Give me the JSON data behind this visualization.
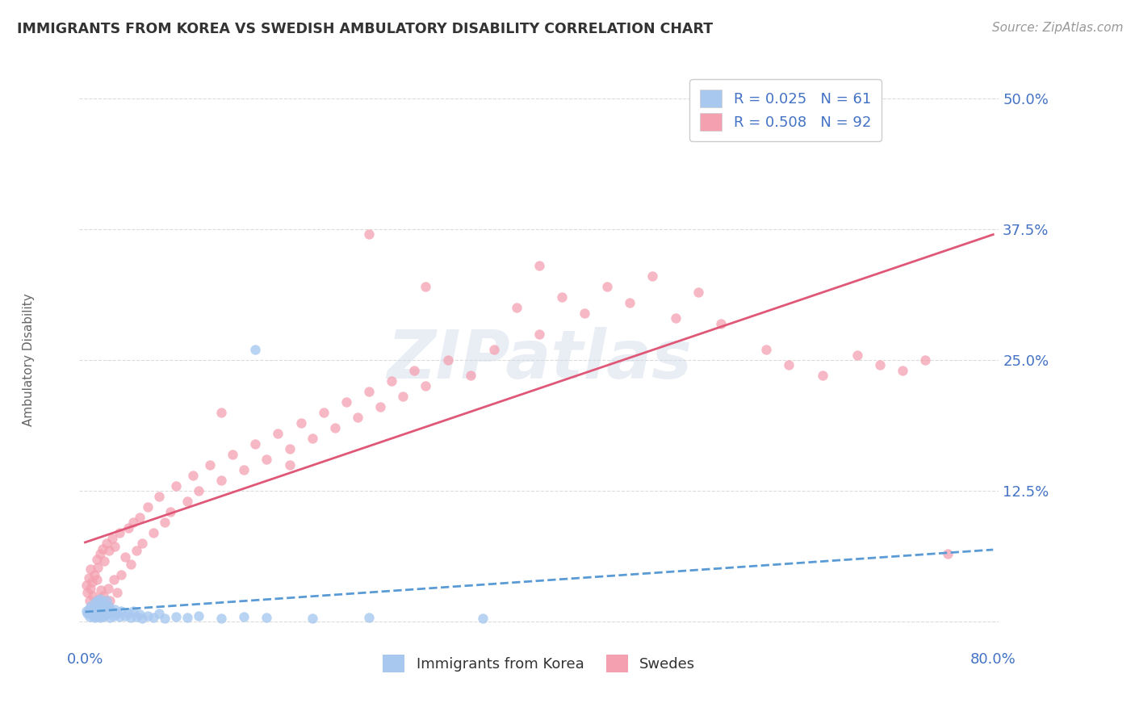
{
  "title": "IMMIGRANTS FROM KOREA VS SWEDISH AMBULATORY DISABILITY CORRELATION CHART",
  "source": "Source: ZipAtlas.com",
  "ylabel": "Ambulatory Disability",
  "legend_korea": "Immigrants from Korea",
  "legend_swedes": "Swedes",
  "r_korea": 0.025,
  "n_korea": 61,
  "r_swedes": 0.508,
  "n_swedes": 92,
  "korea_color": "#a8c8f0",
  "swedes_color": "#f4a0b0",
  "korea_line_color": "#5b9bd5",
  "swedes_line_color": "#e05878",
  "background_color": "#ffffff",
  "grid_color": "#cccccc",
  "title_color": "#333333",
  "axis_label_color": "#4472c4",
  "watermark_text": "ZIPatlas",
  "xmin": 0.0,
  "xmax": 0.8,
  "ymin": -0.025,
  "ymax": 0.525,
  "yticks": [
    0.0,
    0.125,
    0.25,
    0.375,
    0.5
  ],
  "ytick_labels": [
    "",
    "12.5%",
    "25.0%",
    "37.5%",
    "50.0%"
  ],
  "korea_scatter_x": [
    0.001,
    0.002,
    0.003,
    0.004,
    0.005,
    0.005,
    0.006,
    0.007,
    0.007,
    0.008,
    0.008,
    0.009,
    0.009,
    0.01,
    0.01,
    0.011,
    0.011,
    0.012,
    0.012,
    0.013,
    0.013,
    0.014,
    0.014,
    0.015,
    0.015,
    0.016,
    0.016,
    0.017,
    0.018,
    0.018,
    0.019,
    0.02,
    0.021,
    0.022,
    0.023,
    0.025,
    0.026,
    0.028,
    0.03,
    0.032,
    0.035,
    0.038,
    0.04,
    0.042,
    0.045,
    0.048,
    0.05,
    0.055,
    0.06,
    0.065,
    0.07,
    0.08,
    0.09,
    0.1,
    0.12,
    0.14,
    0.16,
    0.2,
    0.25,
    0.35,
    0.15
  ],
  "korea_scatter_y": [
    0.01,
    0.008,
    0.012,
    0.005,
    0.015,
    0.008,
    0.01,
    0.006,
    0.012,
    0.004,
    0.018,
    0.007,
    0.013,
    0.005,
    0.02,
    0.008,
    0.015,
    0.006,
    0.018,
    0.004,
    0.022,
    0.007,
    0.016,
    0.005,
    0.019,
    0.008,
    0.012,
    0.006,
    0.016,
    0.01,
    0.02,
    0.008,
    0.015,
    0.004,
    0.01,
    0.006,
    0.012,
    0.008,
    0.005,
    0.01,
    0.006,
    0.008,
    0.004,
    0.01,
    0.005,
    0.007,
    0.003,
    0.006,
    0.004,
    0.008,
    0.003,
    0.005,
    0.004,
    0.006,
    0.003,
    0.005,
    0.004,
    0.003,
    0.004,
    0.003,
    0.26
  ],
  "swedes_scatter_x": [
    0.001,
    0.002,
    0.003,
    0.004,
    0.005,
    0.005,
    0.006,
    0.007,
    0.008,
    0.009,
    0.01,
    0.01,
    0.011,
    0.012,
    0.013,
    0.014,
    0.015,
    0.016,
    0.017,
    0.018,
    0.019,
    0.02,
    0.021,
    0.022,
    0.024,
    0.025,
    0.026,
    0.028,
    0.03,
    0.032,
    0.035,
    0.038,
    0.04,
    0.042,
    0.045,
    0.048,
    0.05,
    0.055,
    0.06,
    0.065,
    0.07,
    0.075,
    0.08,
    0.09,
    0.095,
    0.1,
    0.11,
    0.12,
    0.13,
    0.14,
    0.15,
    0.16,
    0.17,
    0.18,
    0.19,
    0.2,
    0.21,
    0.22,
    0.23,
    0.24,
    0.25,
    0.26,
    0.27,
    0.28,
    0.29,
    0.3,
    0.32,
    0.34,
    0.36,
    0.38,
    0.4,
    0.42,
    0.44,
    0.46,
    0.48,
    0.5,
    0.52,
    0.54,
    0.56,
    0.6,
    0.62,
    0.65,
    0.68,
    0.7,
    0.72,
    0.74,
    0.76,
    0.12,
    0.18,
    0.25,
    0.3,
    0.4
  ],
  "swedes_scatter_y": [
    0.035,
    0.028,
    0.042,
    0.02,
    0.05,
    0.032,
    0.038,
    0.025,
    0.045,
    0.018,
    0.06,
    0.04,
    0.052,
    0.022,
    0.065,
    0.03,
    0.07,
    0.025,
    0.058,
    0.015,
    0.075,
    0.032,
    0.068,
    0.02,
    0.08,
    0.04,
    0.072,
    0.028,
    0.085,
    0.045,
    0.062,
    0.09,
    0.055,
    0.095,
    0.068,
    0.1,
    0.075,
    0.11,
    0.085,
    0.12,
    0.095,
    0.105,
    0.13,
    0.115,
    0.14,
    0.125,
    0.15,
    0.135,
    0.16,
    0.145,
    0.17,
    0.155,
    0.18,
    0.165,
    0.19,
    0.175,
    0.2,
    0.185,
    0.21,
    0.195,
    0.22,
    0.205,
    0.23,
    0.215,
    0.24,
    0.225,
    0.25,
    0.235,
    0.26,
    0.3,
    0.275,
    0.31,
    0.295,
    0.32,
    0.305,
    0.33,
    0.29,
    0.315,
    0.285,
    0.26,
    0.245,
    0.235,
    0.255,
    0.245,
    0.24,
    0.25,
    0.065,
    0.2,
    0.15,
    0.37,
    0.32,
    0.34
  ]
}
